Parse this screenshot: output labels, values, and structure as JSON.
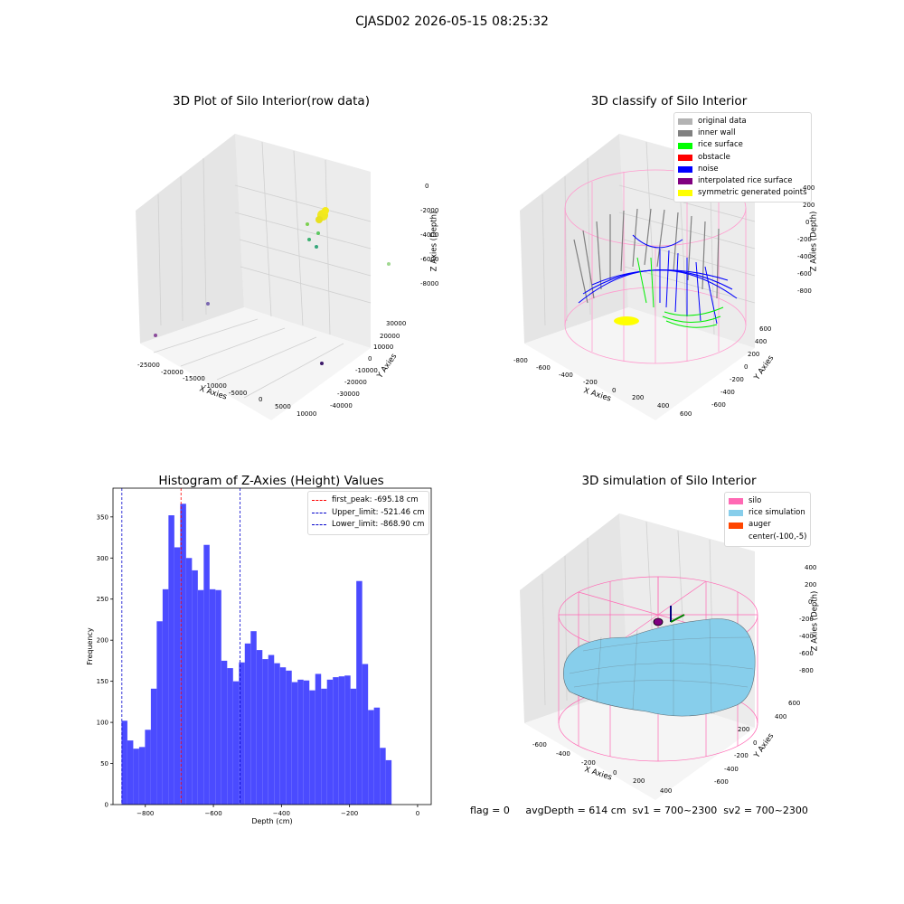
{
  "figure": {
    "suptitle": "CJASD02 2026-05-15 08:25:32"
  },
  "panels": {
    "raw": {
      "title": "3D Plot of Silo Interior(row data)",
      "xlabel": "X Axies",
      "ylabel": "Y Axies",
      "zlabel": "Z Axies (Depth)",
      "xticks": [
        "-25000",
        "-20000",
        "-15000",
        "-10000",
        "-5000",
        "0",
        "5000",
        "10000"
      ],
      "yticks": [
        "30000",
        "20000",
        "10000",
        "0",
        "-10000",
        "-20000",
        "-30000",
        "-40000"
      ],
      "zticks": [
        "0",
        "-2000",
        "-4000",
        "-6000",
        "-8000"
      ]
    },
    "classify": {
      "title": "3D classify of Silo Interior",
      "xlabel": "X Axies",
      "ylabel": "Y Axies",
      "zlabel": "Z Axies (Depth)",
      "xticks": [
        "-800",
        "-600",
        "-400",
        "-200",
        "0",
        "200",
        "400",
        "600"
      ],
      "yticks": [
        "600",
        "400",
        "200",
        "0",
        "-200",
        "-400",
        "-600"
      ],
      "zticks": [
        "400",
        "200",
        "0",
        "-200",
        "-400",
        "-600",
        "-800"
      ],
      "legend": [
        {
          "label": "original data",
          "color": "#b3b3b3"
        },
        {
          "label": "inner wall",
          "color": "#808080"
        },
        {
          "label": "rice surface",
          "color": "#00ff00"
        },
        {
          "label": "obstacle",
          "color": "#ff0000"
        },
        {
          "label": "noise",
          "color": "#0000ff"
        },
        {
          "label": "interpolated rice surface",
          "color": "#800080"
        },
        {
          "label": "symmetric generated points",
          "color": "#ffff00"
        }
      ]
    },
    "histogram": {
      "title": "Histogram of Z-Axies (Height) Values",
      "xlabel": "Depth (cm)",
      "ylabel": "Frequency",
      "legend": [
        {
          "label": "first_peak: -695.18 cm",
          "color": "#ff0000"
        },
        {
          "label": "Upper_limit: -521.46 cm",
          "color": "#0000cc"
        },
        {
          "label": "Lower_limit: -868.90 cm",
          "color": "#0000cc"
        }
      ]
    },
    "simulation": {
      "title": "3D simulation of Silo Interior",
      "xlabel": "X Axies",
      "ylabel": "Y Axies",
      "zlabel": "Z Axies (Depth)",
      "xticks": [
        "-600",
        "-400",
        "-200",
        "0",
        "200",
        "400"
      ],
      "yticks": [
        "600",
        "400",
        "200",
        "0",
        "-200",
        "-400",
        "-600"
      ],
      "zticks": [
        "400",
        "200",
        "0",
        "-200",
        "-400",
        "-600",
        "-800"
      ],
      "legend": [
        {
          "label": "silo",
          "color": "#ff69b4"
        },
        {
          "label": "rice simulation",
          "color": "#87ceeb"
        },
        {
          "label": "auger",
          "color": "#ff4500"
        },
        {
          "label": "center(-100,-5)",
          "color": "#ffffff"
        }
      ]
    }
  },
  "footer": {
    "text": "flag = 0     avgDepth = 614 cm  sv1 = 700~2300  sv2 = 700~2300"
  },
  "chart_data": [
    {
      "type": "scatter",
      "title": "3D Plot of Silo Interior(row data)",
      "xlabel": "X Axies",
      "ylabel": "Y Axies",
      "zlabel": "Z Axies (Depth)",
      "xlim": [
        -27000,
        11000
      ],
      "ylim": [
        -42000,
        35000
      ],
      "zlim": [
        -9000,
        500
      ],
      "note_points_approx": [
        {
          "x": -1000,
          "y": 5000,
          "z": -2300
        },
        {
          "x": -2000,
          "y": 3000,
          "z": -3500
        },
        {
          "x": -25000,
          "y": -10000,
          "z": -8000
        },
        {
          "x": -20000,
          "y": 10000,
          "z": -7000
        },
        {
          "x": 7000,
          "y": -25000,
          "z": -8500
        },
        {
          "x": 5000,
          "y": 25000,
          "z": -6500
        }
      ]
    },
    {
      "type": "scatter",
      "title": "3D classify of Silo Interior",
      "xlabel": "X Axies",
      "ylabel": "Y Axies",
      "zlabel": "Z Axies (Depth)",
      "xlim": [
        -850,
        650
      ],
      "ylim": [
        -650,
        650
      ],
      "zlim": [
        -950,
        450
      ]
    },
    {
      "type": "bar",
      "title": "Histogram of Z-Axies (Height) Values",
      "xlabel": "Depth (cm)",
      "ylabel": "Frequency",
      "xlim": [
        -895,
        40
      ],
      "ylim": [
        0,
        385
      ],
      "xticks": [
        -800,
        -600,
        -400,
        -200,
        0
      ],
      "yticks": [
        0,
        50,
        100,
        150,
        200,
        250,
        300,
        350
      ],
      "bin_start": -870,
      "bin_width": 17.25,
      "values": [
        102,
        78,
        68,
        70,
        91,
        141,
        223,
        262,
        352,
        313,
        366,
        300,
        285,
        261,
        316,
        262,
        261,
        175,
        166,
        150,
        173,
        196,
        211,
        188,
        177,
        182,
        172,
        167,
        163,
        149,
        152,
        151,
        139,
        159,
        141,
        152,
        155,
        156,
        157,
        141,
        272,
        171,
        115,
        118,
        69,
        54
      ],
      "vlines": [
        {
          "x": -695.18,
          "label": "first_peak: -695.18 cm",
          "color": "#ff0000"
        },
        {
          "x": -521.46,
          "label": "Upper_limit: -521.46 cm",
          "color": "#0000cc"
        },
        {
          "x": -868.9,
          "label": "Lower_limit: -868.90 cm",
          "color": "#0000cc"
        }
      ],
      "bar_color": "#4b4bff",
      "legend_position": "upper right"
    },
    {
      "type": "area",
      "title": "3D simulation of Silo Interior",
      "xlabel": "X Axies",
      "ylabel": "Y Axies",
      "zlabel": "Z Axies (Depth)",
      "xlim": [
        -700,
        500
      ],
      "ylim": [
        -650,
        650
      ],
      "zlim": [
        -950,
        450
      ]
    }
  ]
}
